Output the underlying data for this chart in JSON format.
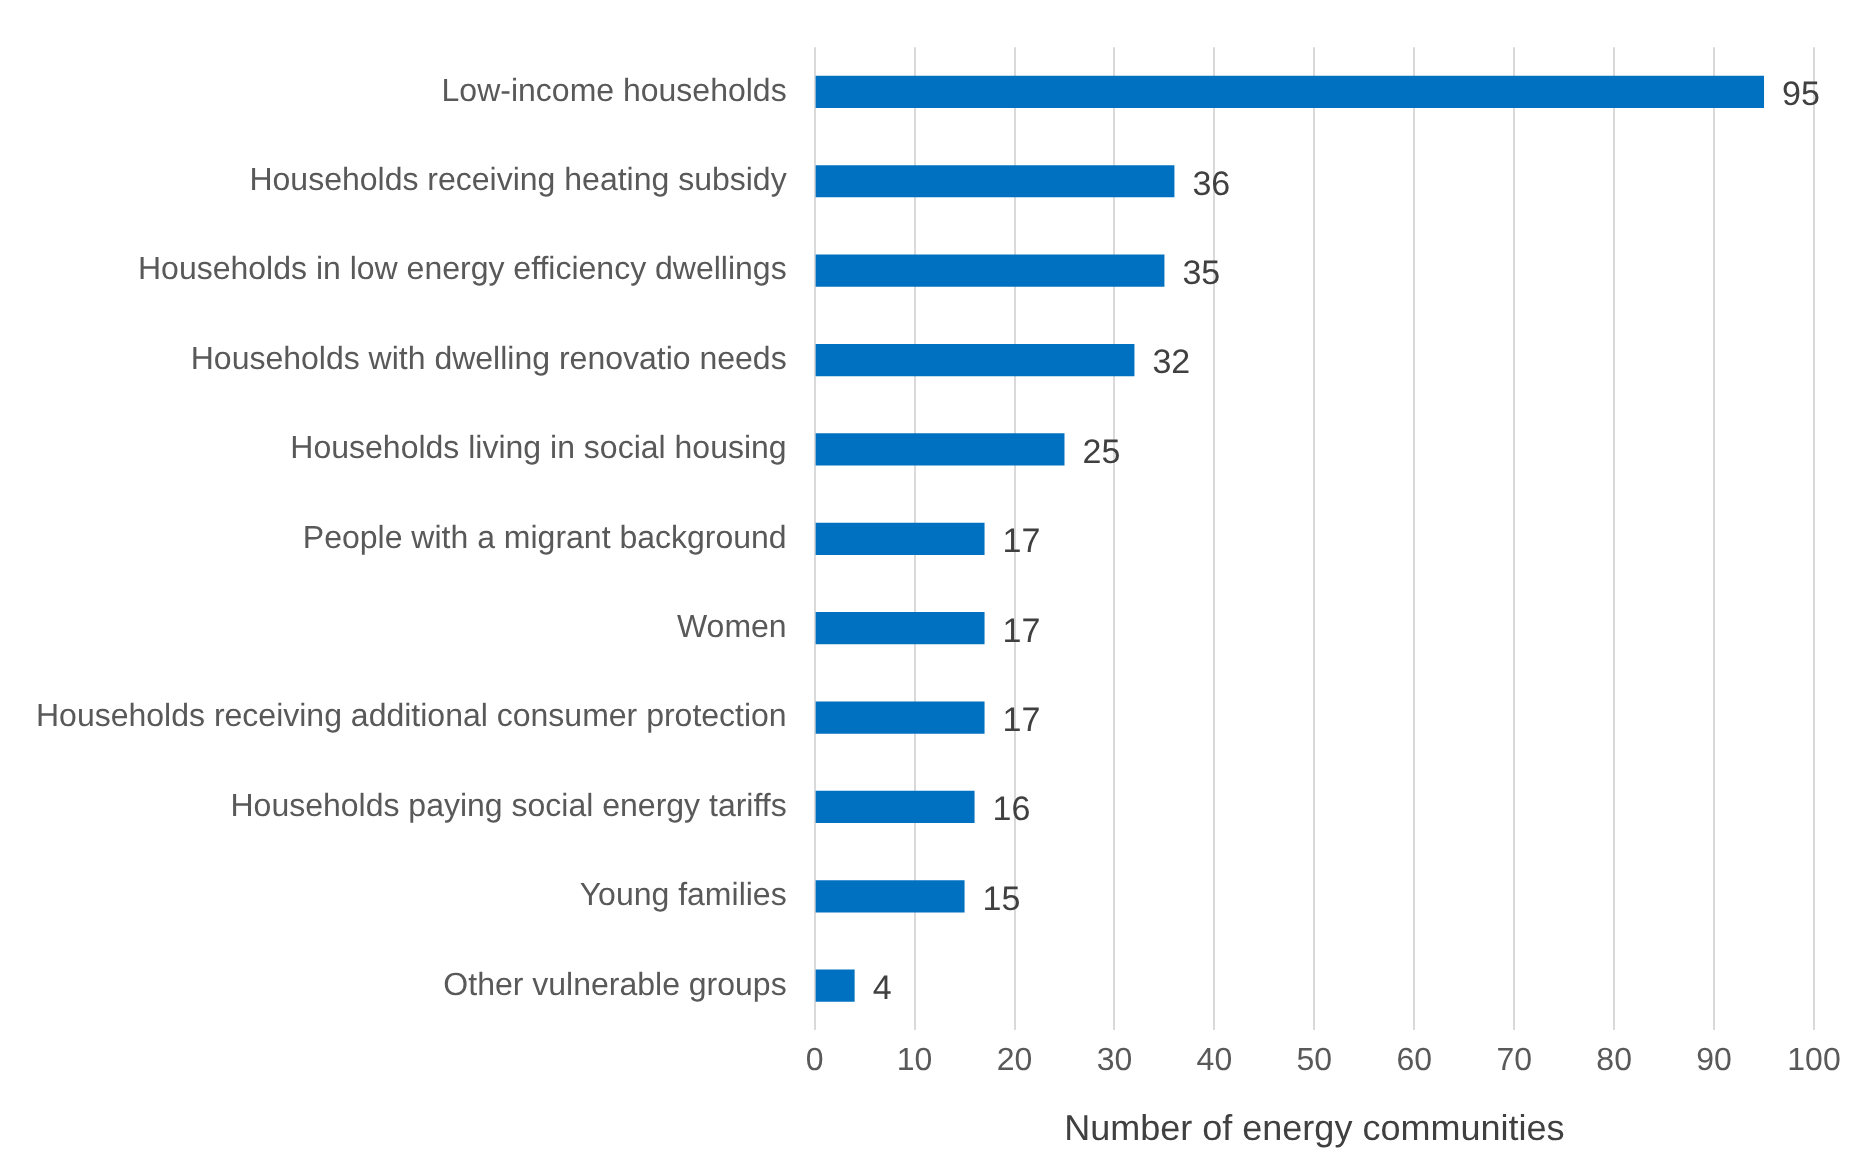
{
  "chart_data": {
    "type": "bar",
    "orientation": "horizontal",
    "xlabel": "Number of energy communities",
    "categories": [
      "Low-income households",
      "Households receiving heating subsidy",
      "Households in low energy efficiency dwellings",
      "Households with dwelling renovatio needs",
      "Households living in social housing",
      "People with a migrant background",
      "Women",
      "Households receiving additional consumer protection",
      "Households paying social energy tariffs",
      "Young families",
      "Other vulnerable groups"
    ],
    "values": [
      95,
      36,
      35,
      32,
      25,
      17,
      17,
      17,
      16,
      15,
      4
    ],
    "color": "#0070c0",
    "xlim": [
      0,
      100
    ],
    "xticks": [
      0,
      10,
      20,
      30,
      40,
      50,
      60,
      70,
      80,
      90,
      100
    ],
    "grid": "x",
    "data_labels": true,
    "legend": false
  }
}
